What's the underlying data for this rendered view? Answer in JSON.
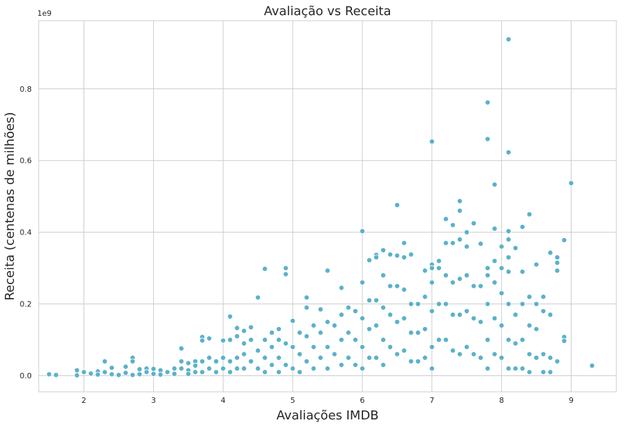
{
  "chart_data": {
    "type": "scatter",
    "title": "Avaliação vs Receita",
    "xlabel": "Avaliações IMDB",
    "ylabel": "Receita (centenas de milhões)",
    "y_offset_text": "1e9",
    "xlim": [
      1.35,
      9.65
    ],
    "ylim": [
      -0.045,
      0.99
    ],
    "x_ticks": [
      2,
      3,
      4,
      5,
      6,
      7,
      8,
      9
    ],
    "y_ticks": [
      0.0,
      0.2,
      0.4,
      0.6,
      0.8
    ],
    "y_tick_labels": [
      "0.0",
      "0.2",
      "0.4",
      "0.6",
      "0.8"
    ],
    "grid": true,
    "marker_color": "#5bb1cb",
    "series": [
      {
        "points": [
          [
            1.5,
            0.004
          ],
          [
            1.6,
            0.002
          ],
          [
            1.9,
            0.015
          ],
          [
            1.9,
            0.001
          ],
          [
            2.0,
            0.01
          ],
          [
            2.1,
            0.006
          ],
          [
            2.2,
            0.012
          ],
          [
            2.2,
            0.003
          ],
          [
            2.3,
            0.04
          ],
          [
            2.3,
            0.01
          ],
          [
            2.4,
            0.022
          ],
          [
            2.4,
            0.004
          ],
          [
            2.5,
            0.002
          ],
          [
            2.6,
            0.025
          ],
          [
            2.6,
            0.008
          ],
          [
            2.7,
            0.05
          ],
          [
            2.7,
            0.04
          ],
          [
            2.7,
            0.002
          ],
          [
            2.8,
            0.018
          ],
          [
            2.8,
            0.004
          ],
          [
            2.9,
            0.02
          ],
          [
            2.9,
            0.01
          ],
          [
            3.0,
            0.019
          ],
          [
            3.0,
            0.005
          ],
          [
            3.1,
            0.015
          ],
          [
            3.1,
            0.003
          ],
          [
            3.2,
            0.01
          ],
          [
            3.3,
            0.02
          ],
          [
            3.3,
            0.005
          ],
          [
            3.4,
            0.076
          ],
          [
            3.4,
            0.04
          ],
          [
            3.4,
            0.02
          ],
          [
            3.5,
            0.035
          ],
          [
            3.5,
            0.015
          ],
          [
            3.5,
            0.005
          ],
          [
            3.6,
            0.04
          ],
          [
            3.6,
            0.028
          ],
          [
            3.6,
            0.01
          ],
          [
            3.7,
            0.108
          ],
          [
            3.7,
            0.098
          ],
          [
            3.7,
            0.04
          ],
          [
            3.7,
            0.01
          ],
          [
            3.8,
            0.104
          ],
          [
            3.8,
            0.05
          ],
          [
            3.8,
            0.02
          ],
          [
            3.9,
            0.04
          ],
          [
            3.9,
            0.01
          ],
          [
            4.0,
            0.098
          ],
          [
            4.0,
            0.05
          ],
          [
            4.0,
            0.02
          ],
          [
            4.1,
            0.165
          ],
          [
            4.1,
            0.1
          ],
          [
            4.1,
            0.04
          ],
          [
            4.1,
            0.01
          ],
          [
            4.2,
            0.133
          ],
          [
            4.2,
            0.11
          ],
          [
            4.2,
            0.05
          ],
          [
            4.2,
            0.02
          ],
          [
            4.3,
            0.125
          ],
          [
            4.3,
            0.09
          ],
          [
            4.3,
            0.06
          ],
          [
            4.3,
            0.02
          ],
          [
            4.4,
            0.135
          ],
          [
            4.4,
            0.1
          ],
          [
            4.4,
            0.04
          ],
          [
            4.5,
            0.218
          ],
          [
            4.5,
            0.07
          ],
          [
            4.5,
            0.02
          ],
          [
            4.6,
            0.298
          ],
          [
            4.6,
            0.1
          ],
          [
            4.6,
            0.05
          ],
          [
            4.6,
            0.01
          ],
          [
            4.7,
            0.12
          ],
          [
            4.7,
            0.08
          ],
          [
            4.7,
            0.03
          ],
          [
            4.8,
            0.13
          ],
          [
            4.8,
            0.1
          ],
          [
            4.8,
            0.05
          ],
          [
            4.8,
            0.01
          ],
          [
            4.9,
            0.3
          ],
          [
            4.9,
            0.283
          ],
          [
            4.9,
            0.09
          ],
          [
            4.9,
            0.03
          ],
          [
            5.0,
            0.153
          ],
          [
            5.0,
            0.08
          ],
          [
            5.0,
            0.02
          ],
          [
            5.1,
            0.12
          ],
          [
            5.1,
            0.06
          ],
          [
            5.1,
            0.01
          ],
          [
            5.2,
            0.218
          ],
          [
            5.2,
            0.19
          ],
          [
            5.2,
            0.11
          ],
          [
            5.2,
            0.04
          ],
          [
            5.3,
            0.14
          ],
          [
            5.3,
            0.08
          ],
          [
            5.3,
            0.02
          ],
          [
            5.4,
            0.185
          ],
          [
            5.4,
            0.12
          ],
          [
            5.4,
            0.05
          ],
          [
            5.5,
            0.293
          ],
          [
            5.5,
            0.15
          ],
          [
            5.5,
            0.08
          ],
          [
            5.5,
            0.02
          ],
          [
            5.6,
            0.14
          ],
          [
            5.6,
            0.06
          ],
          [
            5.7,
            0.245
          ],
          [
            5.7,
            0.17
          ],
          [
            5.7,
            0.1
          ],
          [
            5.7,
            0.03
          ],
          [
            5.8,
            0.19
          ],
          [
            5.8,
            0.12
          ],
          [
            5.8,
            0.05
          ],
          [
            5.9,
            0.18
          ],
          [
            5.9,
            0.1
          ],
          [
            5.9,
            0.03
          ],
          [
            6.0,
            0.403
          ],
          [
            6.0,
            0.26
          ],
          [
            6.0,
            0.16
          ],
          [
            6.0,
            0.08
          ],
          [
            6.0,
            0.02
          ],
          [
            6.1,
            0.322
          ],
          [
            6.1,
            0.21
          ],
          [
            6.1,
            0.13
          ],
          [
            6.1,
            0.05
          ],
          [
            6.2,
            0.337
          ],
          [
            6.2,
            0.33
          ],
          [
            6.2,
            0.21
          ],
          [
            6.2,
            0.14
          ],
          [
            6.2,
            0.05
          ],
          [
            6.3,
            0.35
          ],
          [
            6.3,
            0.28
          ],
          [
            6.3,
            0.19
          ],
          [
            6.3,
            0.1
          ],
          [
            6.3,
            0.03
          ],
          [
            6.4,
            0.338
          ],
          [
            6.4,
            0.25
          ],
          [
            6.4,
            0.17
          ],
          [
            6.4,
            0.08
          ],
          [
            6.5,
            0.476
          ],
          [
            6.5,
            0.335
          ],
          [
            6.5,
            0.25
          ],
          [
            6.5,
            0.15
          ],
          [
            6.5,
            0.06
          ],
          [
            6.6,
            0.37
          ],
          [
            6.6,
            0.33
          ],
          [
            6.6,
            0.24
          ],
          [
            6.6,
            0.16
          ],
          [
            6.6,
            0.07
          ],
          [
            6.7,
            0.338
          ],
          [
            6.7,
            0.2
          ],
          [
            6.7,
            0.12
          ],
          [
            6.7,
            0.04
          ],
          [
            6.8,
            0.2
          ],
          [
            6.8,
            0.12
          ],
          [
            6.8,
            0.04
          ],
          [
            6.9,
            0.293
          ],
          [
            6.9,
            0.22
          ],
          [
            6.9,
            0.13
          ],
          [
            6.9,
            0.05
          ],
          [
            7.0,
            0.653
          ],
          [
            7.0,
            0.31
          ],
          [
            7.0,
            0.3
          ],
          [
            7.0,
            0.26
          ],
          [
            7.0,
            0.18
          ],
          [
            7.0,
            0.08
          ],
          [
            7.0,
            0.02
          ],
          [
            7.1,
            0.32
          ],
          [
            7.1,
            0.3
          ],
          [
            7.1,
            0.2
          ],
          [
            7.1,
            0.1
          ],
          [
            7.2,
            0.437
          ],
          [
            7.2,
            0.37
          ],
          [
            7.2,
            0.28
          ],
          [
            7.2,
            0.2
          ],
          [
            7.2,
            0.1
          ],
          [
            7.3,
            0.42
          ],
          [
            7.3,
            0.37
          ],
          [
            7.3,
            0.26
          ],
          [
            7.3,
            0.17
          ],
          [
            7.3,
            0.07
          ],
          [
            7.4,
            0.487
          ],
          [
            7.4,
            0.46
          ],
          [
            7.4,
            0.38
          ],
          [
            7.4,
            0.27
          ],
          [
            7.4,
            0.17
          ],
          [
            7.4,
            0.06
          ],
          [
            7.5,
            0.4
          ],
          [
            7.5,
            0.36
          ],
          [
            7.5,
            0.28
          ],
          [
            7.5,
            0.18
          ],
          [
            7.5,
            0.08
          ],
          [
            7.6,
            0.425
          ],
          [
            7.6,
            0.25
          ],
          [
            7.6,
            0.16
          ],
          [
            7.6,
            0.06
          ],
          [
            7.7,
            0.368
          ],
          [
            7.7,
            0.25
          ],
          [
            7.7,
            0.15
          ],
          [
            7.7,
            0.05
          ],
          [
            7.8,
            0.762
          ],
          [
            7.8,
            0.66
          ],
          [
            7.8,
            0.3
          ],
          [
            7.8,
            0.28
          ],
          [
            7.8,
            0.2
          ],
          [
            7.8,
            0.1
          ],
          [
            7.8,
            0.02
          ],
          [
            7.9,
            0.533
          ],
          [
            7.9,
            0.41
          ],
          [
            7.9,
            0.32
          ],
          [
            7.9,
            0.26
          ],
          [
            7.9,
            0.16
          ],
          [
            7.9,
            0.06
          ],
          [
            8.0,
            0.36
          ],
          [
            8.0,
            0.3
          ],
          [
            8.0,
            0.23
          ],
          [
            8.0,
            0.14
          ],
          [
            8.0,
            0.05
          ],
          [
            8.1,
            0.938
          ],
          [
            8.1,
            0.623
          ],
          [
            8.1,
            0.403
          ],
          [
            8.1,
            0.38
          ],
          [
            8.1,
            0.33
          ],
          [
            8.1,
            0.29
          ],
          [
            8.1,
            0.2
          ],
          [
            8.1,
            0.1
          ],
          [
            8.1,
            0.02
          ],
          [
            8.2,
            0.356
          ],
          [
            8.2,
            0.17
          ],
          [
            8.2,
            0.09
          ],
          [
            8.2,
            0.02
          ],
          [
            8.3,
            0.415
          ],
          [
            8.3,
            0.29
          ],
          [
            8.3,
            0.2
          ],
          [
            8.3,
            0.1
          ],
          [
            8.3,
            0.02
          ],
          [
            8.4,
            0.45
          ],
          [
            8.4,
            0.22
          ],
          [
            8.4,
            0.14
          ],
          [
            8.4,
            0.06
          ],
          [
            8.4,
            0.01
          ],
          [
            8.5,
            0.31
          ],
          [
            8.5,
            0.2
          ],
          [
            8.5,
            0.13
          ],
          [
            8.5,
            0.05
          ],
          [
            8.6,
            0.22
          ],
          [
            8.6,
            0.18
          ],
          [
            8.6,
            0.06
          ],
          [
            8.6,
            0.01
          ],
          [
            8.7,
            0.343
          ],
          [
            8.7,
            0.17
          ],
          [
            8.7,
            0.05
          ],
          [
            8.7,
            0.01
          ],
          [
            8.8,
            0.33
          ],
          [
            8.8,
            0.315
          ],
          [
            8.8,
            0.293
          ],
          [
            8.8,
            0.04
          ],
          [
            8.9,
            0.378
          ],
          [
            8.9,
            0.108
          ],
          [
            8.9,
            0.097
          ],
          [
            9.0,
            0.537
          ],
          [
            9.3,
            0.028
          ]
        ]
      }
    ]
  }
}
